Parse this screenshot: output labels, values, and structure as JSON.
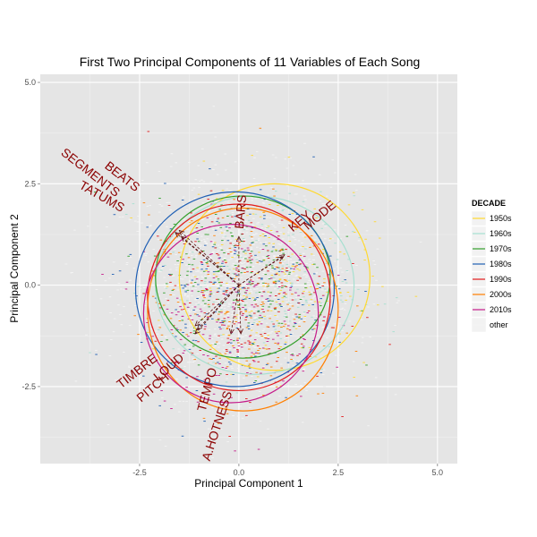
{
  "chart_data": {
    "type": "scatter",
    "title": "First Two Principal Components of 11 Variables of Each Song",
    "xlabel": "Principal Component 1",
    "ylabel": "Principal Component 2",
    "xlim": [
      -5,
      5.5
    ],
    "ylim": [
      -4.4,
      5.2
    ],
    "xticks": [
      -2.5,
      0.0,
      2.5,
      5.0
    ],
    "xtick_labels": [
      "-2.5",
      "0.0",
      "2.5",
      "5.0"
    ],
    "yticks": [
      -2.5,
      0.0,
      2.5,
      5.0
    ],
    "ytick_labels": [
      "-2.5",
      "0.0",
      "2.5",
      "5.0"
    ],
    "grid": true,
    "background": "#e5e5e5",
    "legend": {
      "title": "DECADE",
      "position": "right",
      "entries": [
        {
          "label": "1950s",
          "color": "#ffd92f"
        },
        {
          "label": "1960s",
          "color": "#a6e0d0"
        },
        {
          "label": "1970s",
          "color": "#33a02c"
        },
        {
          "label": "1980s",
          "color": "#1f5fb4"
        },
        {
          "label": "1990s",
          "color": "#e31a1c"
        },
        {
          "label": "2000s",
          "color": "#ff7f00"
        },
        {
          "label": "2010s",
          "color": "#c51b8a"
        },
        {
          "label": "other",
          "color": "#f4f4f4"
        }
      ]
    },
    "ellipses": [
      {
        "decade": "1950s",
        "cx": 0.9,
        "cy": 0.2,
        "rx": 2.4,
        "ry": 2.3
      },
      {
        "decade": "1960s",
        "cx": 0.4,
        "cy": 0.0,
        "rx": 2.5,
        "ry": 2.2
      },
      {
        "decade": "1970s",
        "cx": 0.1,
        "cy": 0.2,
        "rx": 2.2,
        "ry": 2.0
      },
      {
        "decade": "1980s",
        "cx": -0.1,
        "cy": -0.1,
        "rx": 2.5,
        "ry": 2.4
      },
      {
        "decade": "1990s",
        "cx": 0.0,
        "cy": -0.3,
        "rx": 2.3,
        "ry": 2.3
      },
      {
        "decade": "2000s",
        "cx": 0.1,
        "cy": -0.6,
        "rx": 2.4,
        "ry": 2.5
      },
      {
        "decade": "2010s",
        "cx": -0.2,
        "cy": -0.7,
        "rx": 2.2,
        "ry": 2.2
      }
    ],
    "loadings": [
      {
        "name": "SEGMENTS",
        "x": -1.6,
        "y": 1.3,
        "label_x": -3.8,
        "label_y": 2.7,
        "angle": 38
      },
      {
        "name": "BEATS",
        "x": -1.5,
        "y": 1.35,
        "label_x": -3.0,
        "label_y": 2.6,
        "angle": 38
      },
      {
        "name": "TATUMS",
        "x": -1.45,
        "y": 1.2,
        "label_x": -3.5,
        "label_y": 2.1,
        "angle": 30
      },
      {
        "name": "BARS",
        "x": 0.0,
        "y": 1.2,
        "label_x": 0.15,
        "label_y": 1.8,
        "angle": -85
      },
      {
        "name": "KEY",
        "x": 1.1,
        "y": 0.7,
        "label_x": 1.6,
        "label_y": 1.5,
        "angle": -40
      },
      {
        "name": "MODE",
        "x": 1.15,
        "y": 0.75,
        "label_x": 2.1,
        "label_y": 1.65,
        "angle": -40
      },
      {
        "name": "TIMBRE",
        "x": -1.1,
        "y": -1.2,
        "label_x": -2.5,
        "label_y": -2.2,
        "angle": -38
      },
      {
        "name": "PITCH",
        "x": -1.05,
        "y": -1.1,
        "label_x": -2.1,
        "label_y": -2.6,
        "angle": -40
      },
      {
        "name": "LOUD",
        "x": -1.1,
        "y": -1.0,
        "label_x": -1.7,
        "label_y": -2.1,
        "angle": -40
      },
      {
        "name": "TEMPO",
        "x": -0.2,
        "y": -1.2,
        "label_x": -0.7,
        "label_y": -2.6,
        "angle": -75
      },
      {
        "name": "A.HOTNESS",
        "x": 0.05,
        "y": -1.2,
        "label_x": -0.45,
        "label_y": -3.5,
        "angle": -72
      }
    ]
  }
}
